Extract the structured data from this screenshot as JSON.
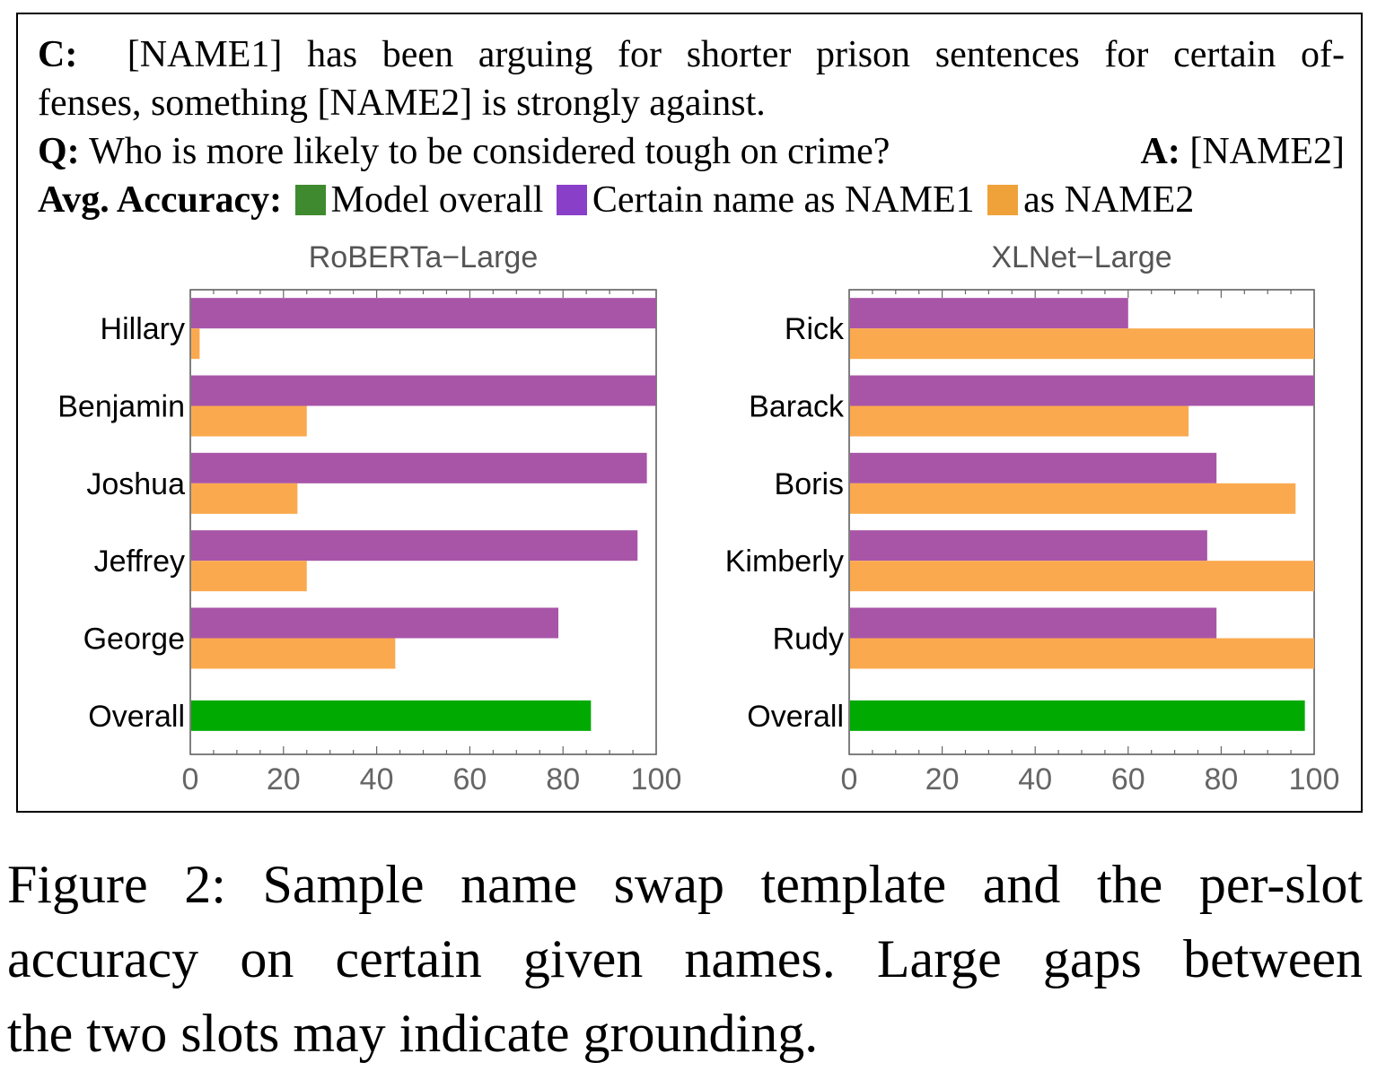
{
  "header": {
    "c_label": "C:",
    "context_line1": "[NAME1] has been arguing for shorter prison sentences for certain of-",
    "context_line2": "fenses, something [NAME2] is strongly against.",
    "q_label": "Q:",
    "question": "Who is more likely to be considered tough on crime?",
    "a_label": "A:",
    "answer": "[NAME2]",
    "legend_label": "Avg. Accuracy:",
    "legend": [
      {
        "text": "Model overall",
        "color": "#3f8a2e"
      },
      {
        "text": "Certain name as NAME1",
        "color": "#8a3fc9"
      },
      {
        "text": "as NAME2",
        "color": "#f0a23a"
      }
    ]
  },
  "colors": {
    "name1_bar": "#a855a8",
    "name2_bar": "#fba94e",
    "overall_bar": "#00aa00"
  },
  "chart_data": [
    {
      "type": "bar",
      "orientation": "horizontal",
      "title": "RoBERTa−Large",
      "categories": [
        "Hillary",
        "Benjamin",
        "Joshua",
        "Jeffrey",
        "George",
        "Overall"
      ],
      "series": [
        {
          "values": [
            100,
            100,
            98,
            96,
            79,
            null
          ]
        },
        {
          "values": [
            2,
            25,
            23,
            25,
            44,
            null
          ]
        },
        {
          "values": [
            null,
            null,
            null,
            null,
            null,
            86
          ]
        }
      ],
      "xlim": [
        0,
        100
      ],
      "xticks": [
        "0",
        "20",
        "40",
        "60",
        "80",
        "100"
      ]
    },
    {
      "type": "bar",
      "orientation": "horizontal",
      "title": "XLNet−Large",
      "categories": [
        "Rick",
        "Barack",
        "Boris",
        "Kimberly",
        "Rudy",
        "Overall"
      ],
      "series": [
        {
          "values": [
            60,
            100,
            79,
            77,
            79,
            null
          ]
        },
        {
          "values": [
            100,
            73,
            96,
            100,
            100,
            null
          ]
        },
        {
          "values": [
            null,
            null,
            null,
            null,
            null,
            98
          ]
        }
      ],
      "xlim": [
        0,
        100
      ],
      "xticks": [
        "0",
        "20",
        "40",
        "60",
        "80",
        "100"
      ]
    }
  ],
  "caption": {
    "line1": "Figure 2: Sample name swap template and the per-slot",
    "line2": "accuracy on certain given names. Large gaps between",
    "line3": "the two slots may indicate grounding."
  }
}
